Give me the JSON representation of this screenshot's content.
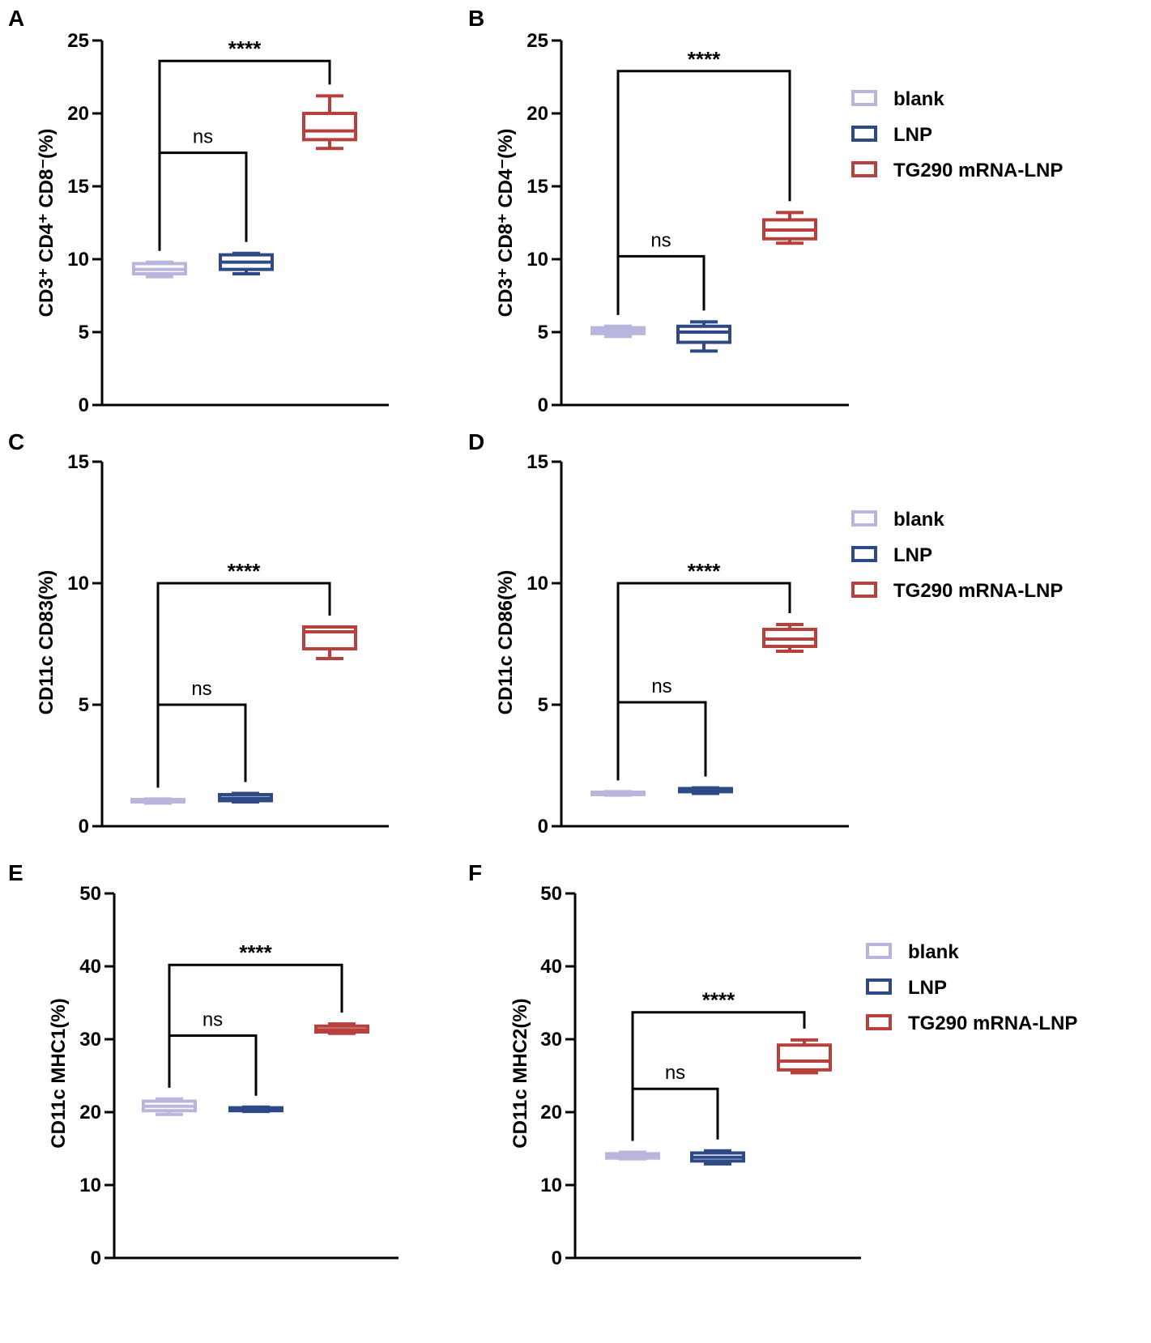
{
  "figure": {
    "groups": [
      "blank",
      "LNP",
      "TG290 mRNA-LNP"
    ],
    "colors": {
      "blank": "#b9b6dd",
      "LNP": "#2e4a86",
      "TG290 mRNA-LNP": "#b8403c",
      "axis": "#000000"
    }
  },
  "legend": {
    "items": [
      {
        "label": "blank",
        "color": "#b9b6dd"
      },
      {
        "label": "LNP",
        "color": "#2e4a86"
      },
      {
        "label": "TG290 mRNA-LNP",
        "color": "#b8403c"
      }
    ]
  },
  "chart_data": [
    {
      "panel": "A",
      "type": "boxplot",
      "ylabel": "CD3⁺ CD4⁺ CD8⁻(%)",
      "ylim": [
        0,
        25
      ],
      "yticks": [
        0,
        5,
        10,
        15,
        20,
        25
      ],
      "series": [
        {
          "name": "blank",
          "min": 8.8,
          "q1": 9.0,
          "median": 9.3,
          "q3": 9.7,
          "max": 9.8
        },
        {
          "name": "LNP",
          "min": 9.0,
          "q1": 9.3,
          "median": 9.8,
          "q3": 10.3,
          "max": 10.4
        },
        {
          "name": "TG290 mRNA-LNP",
          "min": 17.6,
          "q1": 18.2,
          "median": 18.8,
          "q3": 20.0,
          "max": 21.2
        }
      ],
      "comparisons": [
        {
          "from": "blank",
          "to": "LNP",
          "label": "ns",
          "y": 17.3
        },
        {
          "from": "blank",
          "to": "TG290 mRNA-LNP",
          "label": "****",
          "y": 23.6
        }
      ],
      "legend": false
    },
    {
      "panel": "B",
      "type": "boxplot",
      "ylabel": "CD3⁺ CD8⁺ CD4⁻(%)",
      "ylim": [
        0,
        25
      ],
      "yticks": [
        0,
        5,
        10,
        15,
        20,
        25
      ],
      "series": [
        {
          "name": "blank",
          "min": 4.7,
          "q1": 4.9,
          "median": 5.1,
          "q3": 5.3,
          "max": 5.4
        },
        {
          "name": "LNP",
          "min": 3.7,
          "q1": 4.3,
          "median": 5.0,
          "q3": 5.4,
          "max": 5.7
        },
        {
          "name": "TG290 mRNA-LNP",
          "min": 11.1,
          "q1": 11.4,
          "median": 12.0,
          "q3": 12.7,
          "max": 13.2
        }
      ],
      "comparisons": [
        {
          "from": "blank",
          "to": "LNP",
          "label": "ns",
          "y": 10.2
        },
        {
          "from": "blank",
          "to": "TG290 mRNA-LNP",
          "label": "****",
          "y": 22.9
        }
      ],
      "legend": true
    },
    {
      "panel": "C",
      "type": "boxplot",
      "ylabel": "CD11c CD83(%)",
      "ylim": [
        0,
        15
      ],
      "yticks": [
        0,
        5,
        10,
        15
      ],
      "series": [
        {
          "name": "blank",
          "min": 0.95,
          "q1": 1.0,
          "median": 1.05,
          "q3": 1.1,
          "max": 1.12
        },
        {
          "name": "LNP",
          "min": 1.0,
          "q1": 1.05,
          "median": 1.15,
          "q3": 1.3,
          "max": 1.35
        },
        {
          "name": "TG290 mRNA-LNP",
          "min": 6.9,
          "q1": 7.3,
          "median": 8.0,
          "q3": 8.2,
          "max": 8.2
        }
      ],
      "comparisons": [
        {
          "from": "blank",
          "to": "LNP",
          "label": "ns",
          "y": 5.0
        },
        {
          "from": "blank",
          "to": "TG290 mRNA-LNP",
          "label": "****",
          "y": 10.0
        }
      ],
      "legend": false
    },
    {
      "panel": "D",
      "type": "boxplot",
      "ylabel": "CD11c CD86(%)",
      "ylim": [
        0,
        15
      ],
      "yticks": [
        0,
        5,
        10,
        15
      ],
      "series": [
        {
          "name": "blank",
          "min": 1.28,
          "q1": 1.3,
          "median": 1.35,
          "q3": 1.4,
          "max": 1.42
        },
        {
          "name": "LNP",
          "min": 1.35,
          "q1": 1.42,
          "median": 1.48,
          "q3": 1.55,
          "max": 1.58
        },
        {
          "name": "TG290 mRNA-LNP",
          "min": 7.2,
          "q1": 7.4,
          "median": 7.7,
          "q3": 8.1,
          "max": 8.3
        }
      ],
      "comparisons": [
        {
          "from": "blank",
          "to": "LNP",
          "label": "ns",
          "y": 5.1
        },
        {
          "from": "blank",
          "to": "TG290 mRNA-LNP",
          "label": "****",
          "y": 10.0
        }
      ],
      "legend": true
    },
    {
      "panel": "E",
      "type": "boxplot",
      "ylabel": "CD11c MHC1(%)",
      "ylim": [
        0,
        50
      ],
      "yticks": [
        0,
        10,
        20,
        30,
        40,
        50
      ],
      "series": [
        {
          "name": "blank",
          "min": 19.7,
          "q1": 20.2,
          "median": 20.8,
          "q3": 21.5,
          "max": 21.8
        },
        {
          "name": "LNP",
          "min": 20.1,
          "q1": 20.2,
          "median": 20.4,
          "q3": 20.6,
          "max": 20.7
        },
        {
          "name": "TG290 mRNA-LNP",
          "min": 30.8,
          "q1": 31.0,
          "median": 31.3,
          "q3": 31.8,
          "max": 32.1
        }
      ],
      "comparisons": [
        {
          "from": "blank",
          "to": "LNP",
          "label": "ns",
          "y": 30.5
        },
        {
          "from": "blank",
          "to": "TG290 mRNA-LNP",
          "label": "****",
          "y": 40.2
        }
      ],
      "legend": false
    },
    {
      "panel": "F",
      "type": "boxplot",
      "ylabel": "CD11c MHC2(%)",
      "ylim": [
        0,
        50
      ],
      "yticks": [
        0,
        10,
        20,
        30,
        40,
        50
      ],
      "series": [
        {
          "name": "blank",
          "min": 13.6,
          "q1": 13.7,
          "median": 14.0,
          "q3": 14.3,
          "max": 14.5
        },
        {
          "name": "LNP",
          "min": 12.9,
          "q1": 13.3,
          "median": 13.8,
          "q3": 14.4,
          "max": 14.7
        },
        {
          "name": "TG290 mRNA-LNP",
          "min": 25.4,
          "q1": 25.8,
          "median": 27.0,
          "q3": 29.2,
          "max": 29.9
        }
      ],
      "comparisons": [
        {
          "from": "blank",
          "to": "LNP",
          "label": "ns",
          "y": 23.2
        },
        {
          "from": "blank",
          "to": "TG290 mRNA-LNP",
          "label": "****",
          "y": 33.7
        }
      ],
      "legend": true
    }
  ]
}
